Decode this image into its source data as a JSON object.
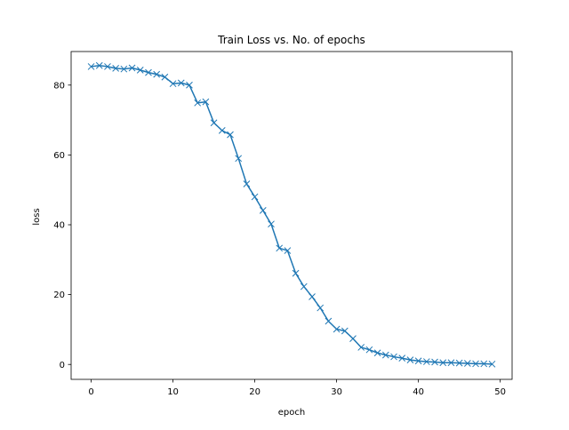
{
  "chart_data": {
    "type": "line",
    "title": "Train Loss vs. No. of epochs",
    "xlabel": "epoch",
    "ylabel": "loss",
    "xlim": [
      -2.45,
      51.45
    ],
    "ylim": [
      -4.27,
      89.61
    ],
    "xticks": [
      0,
      10,
      20,
      30,
      40,
      50
    ],
    "yticks": [
      0,
      20,
      40,
      60,
      80
    ],
    "grid": false,
    "legend": null,
    "line_color": "#1f77b4",
    "marker": "x",
    "series": [
      {
        "x": [
          0,
          1,
          2,
          3,
          4,
          5,
          6,
          7,
          8,
          9,
          10,
          11,
          12,
          13,
          14,
          15,
          16,
          17,
          18,
          19,
          20,
          21,
          22,
          23,
          24,
          25,
          26,
          27,
          28,
          29,
          30,
          31,
          32,
          33,
          34,
          35,
          36,
          37,
          38,
          39,
          40,
          41,
          42,
          43,
          44,
          45,
          46,
          47,
          48,
          49
        ],
        "values": [
          85.3,
          85.6,
          85.3,
          84.8,
          84.6,
          84.9,
          84.3,
          83.6,
          83.1,
          82.3,
          80.4,
          80.6,
          80.0,
          74.9,
          75.2,
          69.2,
          67.0,
          65.8,
          59.0,
          51.7,
          48.0,
          44.1,
          40.2,
          33.3,
          32.6,
          26.1,
          22.3,
          19.4,
          16.2,
          12.4,
          10.1,
          9.6,
          7.4,
          4.9,
          4.2,
          3.3,
          2.7,
          2.2,
          1.8,
          1.3,
          1.0,
          0.8,
          0.7,
          0.5,
          0.5,
          0.4,
          0.3,
          0.2,
          0.2,
          0.1
        ]
      }
    ]
  }
}
